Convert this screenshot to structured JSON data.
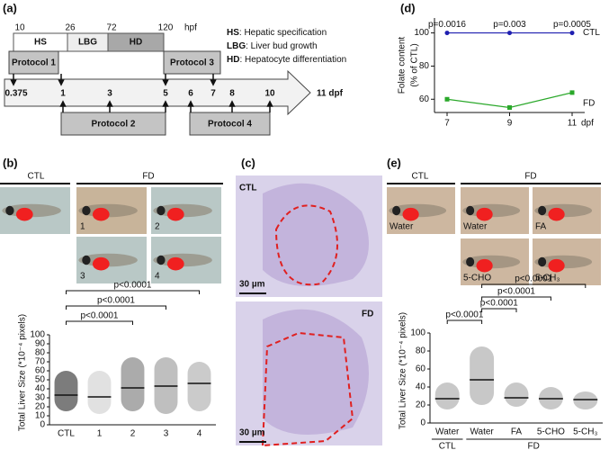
{
  "panels": {
    "a": {
      "label": "(a)",
      "hpf_ticks": [
        10,
        26,
        72,
        120
      ],
      "hpf_unit": "hpf",
      "stages": [
        "HS",
        "LBG",
        "HD"
      ],
      "legend": [
        {
          "abbr": "HS",
          "text": ": Hepatic specification"
        },
        {
          "abbr": "LBG",
          "text": ": Liver bud growth"
        },
        {
          "abbr": "HD",
          "text": ": Hepatocyte differentiation"
        }
      ],
      "protocols": [
        "Protocol 1",
        "Protocol 2",
        "Protocol 3",
        "Protocol 4"
      ],
      "dpf_ticks": [
        "0.375",
        "1",
        "3",
        "5",
        "6",
        "7",
        "8",
        "10"
      ],
      "end_label": "11 dpf"
    },
    "b": {
      "label": "(b)",
      "groups": [
        "CTL",
        "FD"
      ],
      "image_labels": [
        "1",
        "2",
        "3",
        "4"
      ]
    },
    "c": {
      "label": "(c)",
      "images": [
        {
          "label": "CTL",
          "scale": "30 µm"
        },
        {
          "label": "FD",
          "scale": "30 µm"
        }
      ]
    },
    "d": {
      "label": "(d)"
    },
    "e": {
      "label": "(e)",
      "groups": [
        "CTL",
        "FD"
      ],
      "image_labels": [
        "Water",
        "Water",
        "FA",
        "5-CHO",
        "5-CH₃"
      ]
    }
  },
  "chart_data": [
    {
      "type": "line",
      "y_label": [
        "Folate content",
        "(% of CTL)"
      ],
      "categories": [
        "7",
        "9",
        "11"
      ],
      "x_unit": "dpf",
      "series": [
        {
          "name": "CTL",
          "color": "#1f1fb0",
          "values": [
            100,
            100,
            100
          ]
        },
        {
          "name": "FD",
          "color": "#2aa82a",
          "values": [
            60,
            55,
            64
          ]
        }
      ],
      "annotations": [
        "p=0.0016",
        "p=0.003",
        "p=0.0005"
      ],
      "ylim": [
        52,
        109
      ],
      "yticks": [
        60,
        80,
        100
      ]
    },
    {
      "type": "dotplot",
      "y_label": "Total Liver Size (*10⁻⁴ pixels)",
      "categories": [
        "CTL",
        "1",
        "2",
        "3",
        "4"
      ],
      "colors": [
        "#111111",
        "#c8c8c8",
        "#666666",
        "#8a8a8a",
        "#a0a0a0"
      ],
      "means": [
        33,
        31,
        41,
        43,
        46
      ],
      "ranges": [
        [
          15,
          60
        ],
        [
          12,
          60
        ],
        [
          15,
          75
        ],
        [
          12,
          75
        ],
        [
          15,
          70
        ]
      ],
      "comparisons": [
        "p<0.0001",
        "p<0.0001",
        "p<0.0001"
      ],
      "ylim": [
        0,
        100
      ],
      "yticks": [
        0,
        10,
        20,
        30,
        40,
        50,
        60,
        70,
        80,
        90,
        100
      ]
    },
    {
      "type": "dotplot",
      "y_label": "Total Liver Size (*10⁻⁴ pixels)",
      "categories": [
        "Water",
        "Water",
        "FA",
        "5-CHO",
        "5-CH₃"
      ],
      "groups": [
        "CTL",
        "FD"
      ],
      "colors": [
        "#9a9a9a",
        "#9a9a9a",
        "#9a9a9a",
        "#9a9a9a",
        "#9a9a9a"
      ],
      "means": [
        27,
        48,
        28,
        27,
        26
      ],
      "ranges": [
        [
          15,
          45
        ],
        [
          20,
          85
        ],
        [
          18,
          45
        ],
        [
          15,
          40
        ],
        [
          15,
          35
        ]
      ],
      "comparisons": [
        "p<0.0001",
        "p<0.0001",
        "p<0.0001",
        "p<0.0001"
      ],
      "ylim": [
        0,
        100
      ],
      "yticks": [
        0,
        20,
        40,
        60,
        80,
        100
      ]
    }
  ]
}
